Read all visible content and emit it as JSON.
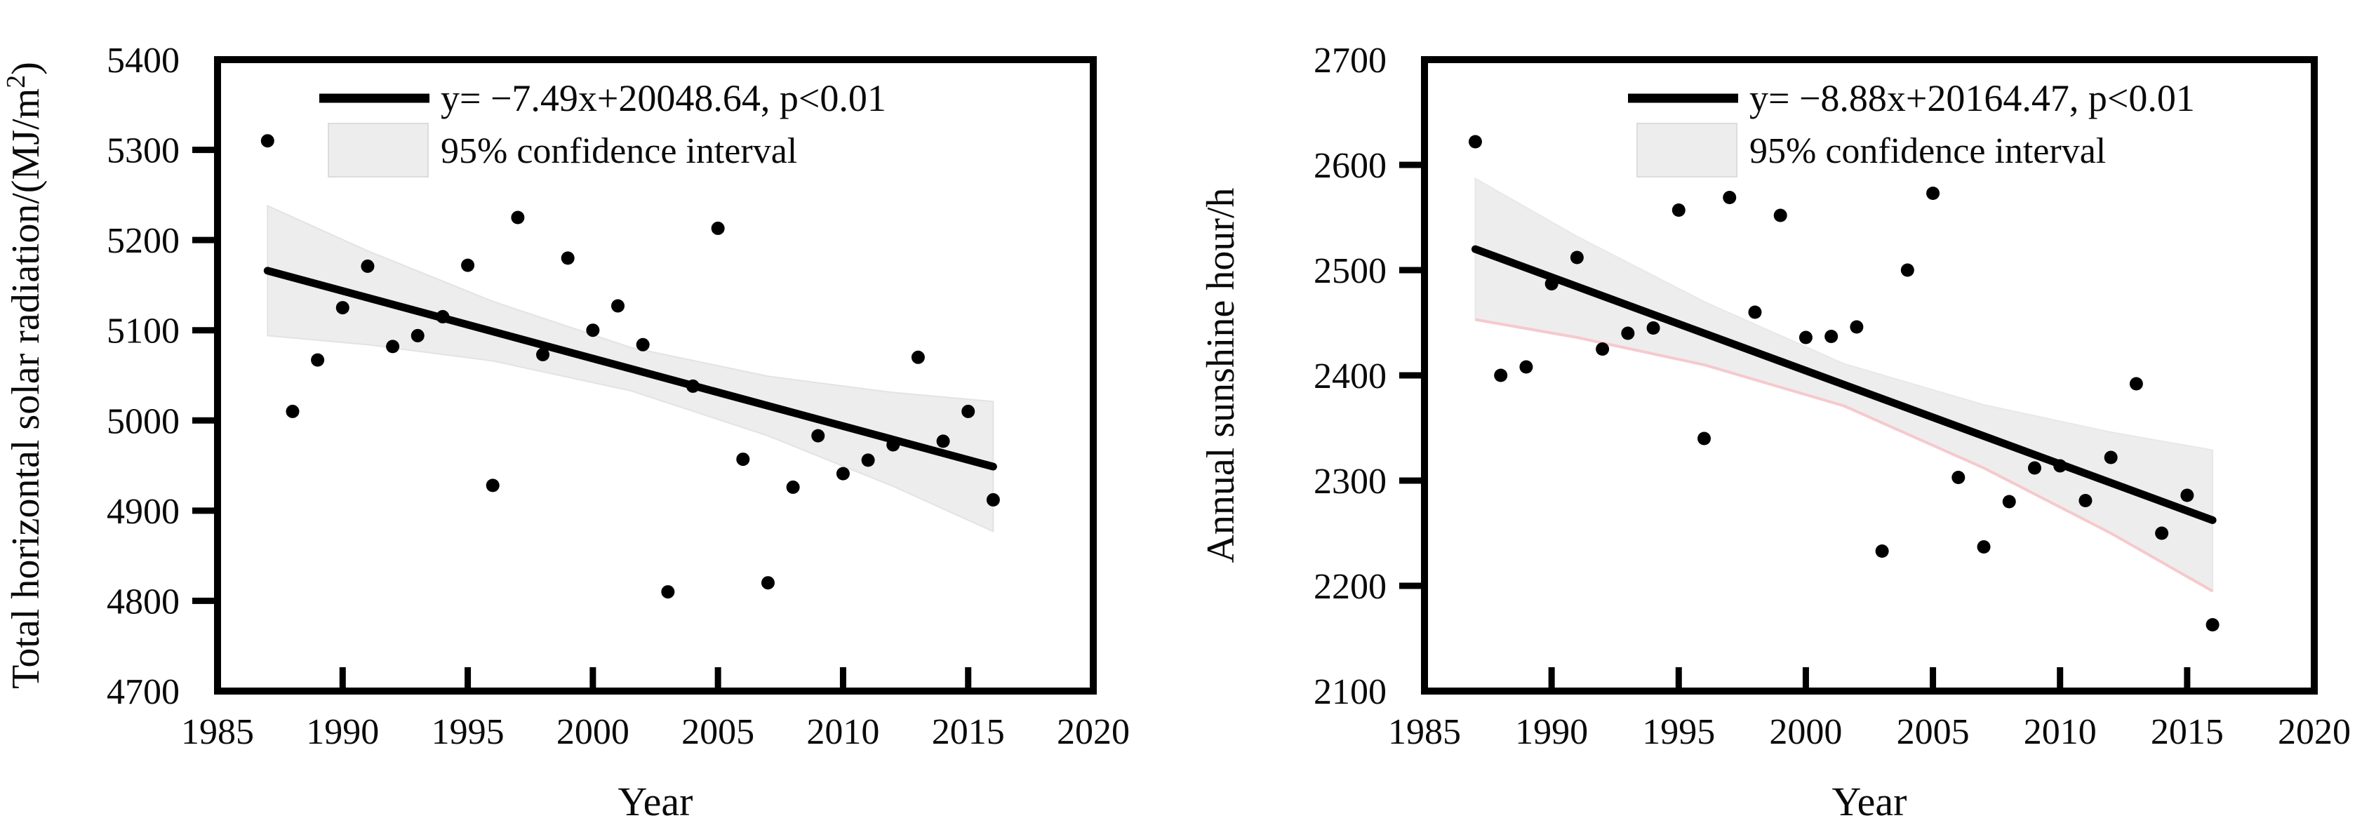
{
  "figure": {
    "background": "#ffffff",
    "foreground": "#0a0a0a"
  },
  "chart_data": [
    {
      "type": "scatter",
      "panel": "left",
      "title": "",
      "xlabel": "Year",
      "ylabel": "Total horizontal solar radiation/(MJ/m²)",
      "ylabel_parts": {
        "text": "Total horizontal solar radiation/(MJ/m",
        "superscript": "2",
        "suffix": ")"
      },
      "xlim": [
        1985,
        2020
      ],
      "ylim": [
        4700,
        5400
      ],
      "x_ticks": [
        1985,
        1990,
        1995,
        2000,
        2005,
        2010,
        2015,
        2020
      ],
      "y_ticks": [
        4700,
        4800,
        4900,
        5000,
        5100,
        5200,
        5300,
        5400
      ],
      "grid": false,
      "legend_position": "top-left-inside",
      "legend": {
        "line_label": "y= −7.49x+20048.64, p<0.01",
        "band_label": "95% confidence interval"
      },
      "trend": {
        "slope": -7.49,
        "intercept": 20048.64,
        "x_start": 1987,
        "x_end": 2016,
        "color": "#000000"
      },
      "confidence_band": {
        "fill": "#ededed",
        "edge": "#e3e3e3",
        "x": [
          1987,
          1991,
          1996,
          2001.5,
          2007,
          2012,
          2016
        ],
        "upper": [
          5238,
          5188,
          5132,
          5081,
          5049,
          5031,
          5021
        ],
        "lower": [
          5094,
          5084,
          5066,
          5033,
          4983,
          4927,
          4877
        ]
      },
      "point_color": "#000000",
      "points": [
        [
          1987,
          5310
        ],
        [
          1988,
          5010
        ],
        [
          1989,
          5067
        ],
        [
          1990,
          5125
        ],
        [
          1991,
          5171
        ],
        [
          1992,
          5082
        ],
        [
          1993,
          5094
        ],
        [
          1994,
          5115
        ],
        [
          1995,
          5172
        ],
        [
          1996,
          4928
        ],
        [
          1997,
          5225
        ],
        [
          1998,
          5073
        ],
        [
          1999,
          5180
        ],
        [
          2000,
          5100
        ],
        [
          2001,
          5127
        ],
        [
          2002,
          5084
        ],
        [
          2003,
          4810
        ],
        [
          2004,
          5038
        ],
        [
          2005,
          5213
        ],
        [
          2006,
          4957
        ],
        [
          2007,
          4820
        ],
        [
          2008,
          4926
        ],
        [
          2009,
          4983
        ],
        [
          2010,
          4941
        ],
        [
          2011,
          4956
        ],
        [
          2012,
          4973
        ],
        [
          2013,
          5070
        ],
        [
          2014,
          4977
        ],
        [
          2015,
          5010
        ],
        [
          2016,
          4912
        ]
      ]
    },
    {
      "type": "scatter",
      "panel": "right",
      "title": "",
      "xlabel": "Year",
      "ylabel": "Annual sunshine hour/h",
      "ylabel_parts": {
        "text": "Annual sunshine hour/h",
        "superscript": "",
        "suffix": ""
      },
      "xlim": [
        1985,
        2020
      ],
      "ylim": [
        2100,
        2700
      ],
      "x_ticks": [
        1985,
        1990,
        1995,
        2000,
        2005,
        2010,
        2015,
        2020
      ],
      "y_ticks": [
        2100,
        2200,
        2300,
        2400,
        2500,
        2600,
        2700
      ],
      "grid": false,
      "legend_position": "top-left-inside",
      "legend": {
        "line_label": "y= −8.88x+20164.47, p<0.01",
        "band_label": "95% confidence interval"
      },
      "trend": {
        "slope": -8.88,
        "intercept": 20164.47,
        "x_start": 1987,
        "x_end": 2016,
        "color": "#000000"
      },
      "confidence_band": {
        "fill": "#ededed",
        "edge": "#e8e8e8",
        "lower_edge_color": "#f6c9cd",
        "x": [
          1987,
          1991,
          1996,
          2001.5,
          2007,
          2012,
          2016
        ],
        "upper": [
          2587,
          2532,
          2470,
          2411,
          2372,
          2346,
          2329
        ],
        "lower": [
          2453,
          2436,
          2410,
          2371,
          2312,
          2250,
          2195
        ]
      },
      "point_color": "#000000",
      "points": [
        [
          1987,
          2622
        ],
        [
          1988,
          2400
        ],
        [
          1989,
          2408
        ],
        [
          1990,
          2487
        ],
        [
          1991,
          2512
        ],
        [
          1992,
          2425
        ],
        [
          1993,
          2440
        ],
        [
          1994,
          2445
        ],
        [
          1995,
          2557
        ],
        [
          1996,
          2340
        ],
        [
          1997,
          2569
        ],
        [
          1998,
          2460
        ],
        [
          1999,
          2552
        ],
        [
          2000,
          2436
        ],
        [
          2001,
          2437
        ],
        [
          2002,
          2446
        ],
        [
          2003,
          2233
        ],
        [
          2004,
          2500
        ],
        [
          2005,
          2573
        ],
        [
          2006,
          2303
        ],
        [
          2007,
          2237
        ],
        [
          2008,
          2280
        ],
        [
          2009,
          2312
        ],
        [
          2010,
          2314
        ],
        [
          2011,
          2281
        ],
        [
          2012,
          2322
        ],
        [
          2013,
          2392
        ],
        [
          2014,
          2250
        ],
        [
          2015,
          2286
        ],
        [
          2016,
          2163
        ]
      ]
    }
  ]
}
